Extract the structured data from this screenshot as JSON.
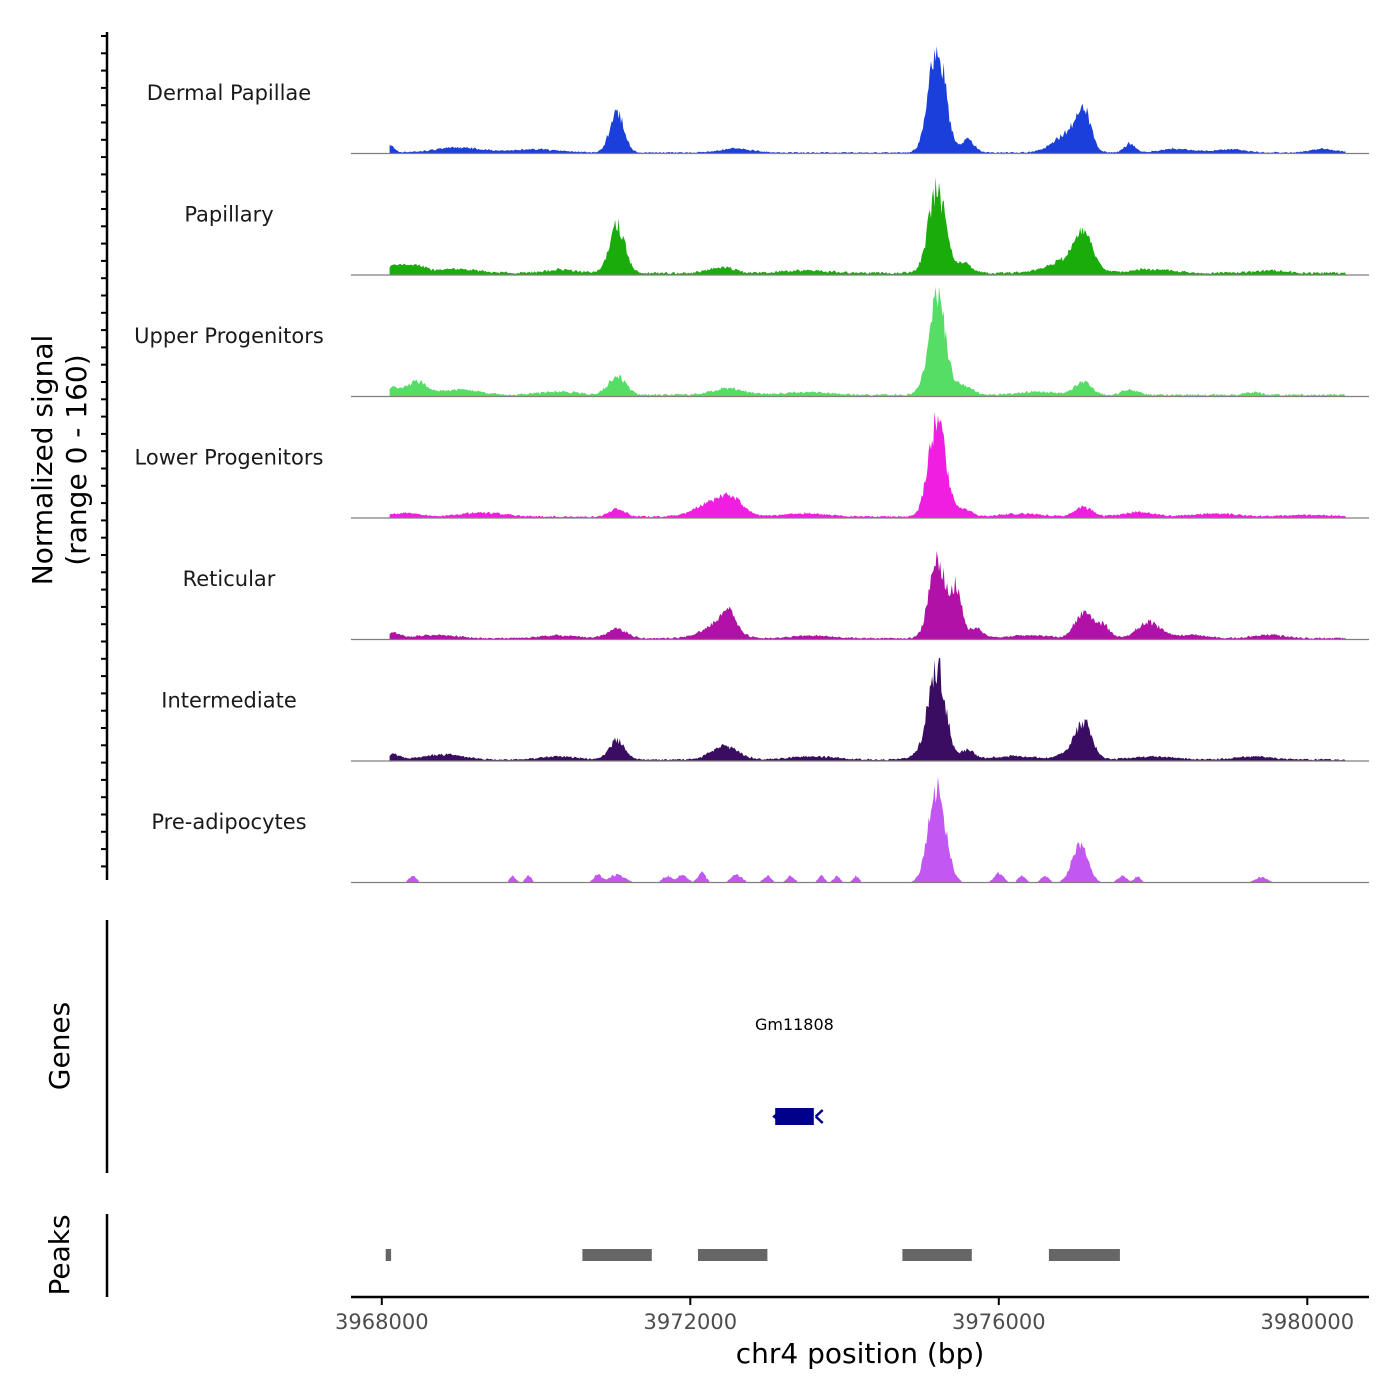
{
  "chart_data": {
    "type": "area",
    "y_axis": {
      "title_line1": "Normalized signal",
      "title_line2": "(range 0 - 160)",
      "range": [
        0,
        160
      ]
    },
    "x_axis": {
      "title": "chr4 position (bp)",
      "range": [
        3967600,
        3980800
      ],
      "ticks": [
        3968000,
        3972000,
        3976000,
        3980000
      ],
      "tick_labels": [
        "3968000",
        "3972000",
        "3976000",
        "3980000"
      ]
    },
    "tracks": [
      {
        "name": "Dermal Papillae",
        "color": "#1a3fdb",
        "peaks": [
          [
            3968100,
            12,
            60
          ],
          [
            3969000,
            8,
            300
          ],
          [
            3970000,
            5,
            300
          ],
          [
            3971050,
            65,
            90
          ],
          [
            3972600,
            6,
            200
          ],
          [
            3975200,
            160,
            110
          ],
          [
            3975600,
            20,
            80
          ],
          [
            3976900,
            30,
            180
          ],
          [
            3977100,
            55,
            90
          ],
          [
            3977700,
            14,
            70
          ],
          [
            3978300,
            6,
            200
          ],
          [
            3979000,
            5,
            200
          ],
          [
            3980200,
            6,
            150
          ]
        ],
        "baseline": 1.5
      },
      {
        "name": "Papillary",
        "color": "#19ac0b",
        "peaks": [
          [
            3968150,
            10,
            90
          ],
          [
            3968400,
            12,
            150
          ],
          [
            3969000,
            6,
            250
          ],
          [
            3970300,
            5,
            200
          ],
          [
            3971050,
            75,
            100
          ],
          [
            3972400,
            10,
            150
          ],
          [
            3973500,
            4,
            300
          ],
          [
            3975200,
            130,
            110
          ],
          [
            3975550,
            15,
            100
          ],
          [
            3976900,
            20,
            250
          ],
          [
            3977100,
            50,
            120
          ],
          [
            3978000,
            6,
            250
          ],
          [
            3979500,
            4,
            200
          ]
        ],
        "baseline": 3
      },
      {
        "name": "Upper Progenitors",
        "color": "#55dd66",
        "peaks": [
          [
            3968150,
            10,
            90
          ],
          [
            3968450,
            20,
            130
          ],
          [
            3969000,
            8,
            250
          ],
          [
            3970300,
            5,
            250
          ],
          [
            3971050,
            30,
            110
          ],
          [
            3972500,
            10,
            200
          ],
          [
            3973500,
            4,
            300
          ],
          [
            3975200,
            150,
            110
          ],
          [
            3975550,
            15,
            100
          ],
          [
            3976500,
            5,
            250
          ],
          [
            3977100,
            20,
            110
          ],
          [
            3977700,
            8,
            100
          ],
          [
            3979300,
            4,
            100
          ]
        ],
        "baseline": 2.5
      },
      {
        "name": "Lower Progenitors",
        "color": "#f01ee0",
        "peaks": [
          [
            3968300,
            5,
            200
          ],
          [
            3969300,
            6,
            300
          ],
          [
            3971050,
            12,
            100
          ],
          [
            3972300,
            22,
            220
          ],
          [
            3972550,
            20,
            150
          ],
          [
            3973500,
            5,
            300
          ],
          [
            3975200,
            150,
            110
          ],
          [
            3975550,
            12,
            100
          ],
          [
            3976300,
            5,
            250
          ],
          [
            3977100,
            15,
            110
          ],
          [
            3977800,
            7,
            200
          ],
          [
            3978800,
            5,
            300
          ],
          [
            3980000,
            3,
            300
          ]
        ],
        "baseline": 2
      },
      {
        "name": "Reticular",
        "color": "#b211a8",
        "peaks": [
          [
            3968150,
            8,
            90
          ],
          [
            3968700,
            5,
            250
          ],
          [
            3970300,
            4,
            250
          ],
          [
            3971050,
            15,
            120
          ],
          [
            3972350,
            20,
            200
          ],
          [
            3972500,
            30,
            100
          ],
          [
            3973600,
            4,
            250
          ],
          [
            3975200,
            130,
            100
          ],
          [
            3975450,
            80,
            70
          ],
          [
            3975700,
            15,
            90
          ],
          [
            3976400,
            5,
            250
          ],
          [
            3977100,
            40,
            110
          ],
          [
            3977350,
            20,
            90
          ],
          [
            3977950,
            25,
            150
          ],
          [
            3978500,
            5,
            200
          ],
          [
            3979500,
            5,
            200
          ]
        ],
        "baseline": 2
      },
      {
        "name": "Intermediate",
        "color": "#3a0d63",
        "peaks": [
          [
            3968150,
            8,
            90
          ],
          [
            3968800,
            8,
            250
          ],
          [
            3970300,
            5,
            250
          ],
          [
            3971050,
            30,
            100
          ],
          [
            3972450,
            20,
            180
          ],
          [
            3973600,
            5,
            300
          ],
          [
            3975050,
            10,
            150
          ],
          [
            3975200,
            140,
            110
          ],
          [
            3975600,
            15,
            90
          ],
          [
            3976200,
            6,
            250
          ],
          [
            3976900,
            8,
            150
          ],
          [
            3977100,
            55,
            110
          ],
          [
            3978000,
            5,
            300
          ],
          [
            3979300,
            5,
            250
          ]
        ],
        "baseline": 2
      },
      {
        "name": "Pre-adipocytes",
        "color": "#c257f2",
        "peaks": [
          [
            3968400,
            10,
            50
          ],
          [
            3969700,
            10,
            40
          ],
          [
            3969900,
            10,
            40
          ],
          [
            3970800,
            12,
            50
          ],
          [
            3971050,
            12,
            100
          ],
          [
            3971700,
            10,
            60
          ],
          [
            3971900,
            12,
            60
          ],
          [
            3972150,
            15,
            50
          ],
          [
            3972600,
            12,
            70
          ],
          [
            3973000,
            10,
            50
          ],
          [
            3973300,
            10,
            50
          ],
          [
            3973700,
            10,
            40
          ],
          [
            3973900,
            10,
            40
          ],
          [
            3974150,
            10,
            40
          ],
          [
            3975200,
            150,
            110
          ],
          [
            3976000,
            15,
            60
          ],
          [
            3976300,
            10,
            50
          ],
          [
            3976600,
            10,
            50
          ],
          [
            3977050,
            60,
            100
          ],
          [
            3977600,
            10,
            60
          ],
          [
            3977800,
            10,
            40
          ],
          [
            3979400,
            8,
            80
          ]
        ],
        "baseline": 0
      }
    ],
    "genes": [
      {
        "name": "Gm11808",
        "start": 3973100,
        "end": 3973600,
        "strand": "-",
        "color": "#00008b"
      }
    ],
    "genes_title": "Genes",
    "peaks_title": "Peaks",
    "peak_regions": [
      [
        3968050,
        3968120
      ],
      [
        3970600,
        3971500
      ],
      [
        3972100,
        3973000
      ],
      [
        3974750,
        3975650
      ],
      [
        3976650,
        3977570
      ]
    ],
    "peak_color": "#666666"
  }
}
